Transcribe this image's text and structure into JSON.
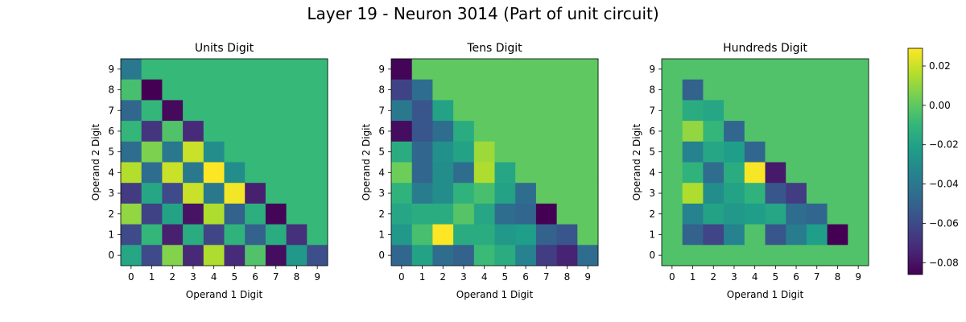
{
  "title": "Layer 19 - Neuron 3014 (Part of unit circuit)",
  "colormap": [
    "#440154",
    "#482878",
    "#3e4989",
    "#31688e",
    "#26828e",
    "#1f9e89",
    "#35b779",
    "#6ece58",
    "#b5de2b",
    "#fde725"
  ],
  "colorbar": {
    "min": -0.086,
    "max": 0.029,
    "ticks": [
      0.02,
      0.0,
      -0.02,
      -0.04,
      -0.06,
      -0.08
    ],
    "tick_labels": [
      "0.02",
      "0.00",
      "−0.02",
      "−0.04",
      "−0.06",
      "−0.08"
    ]
  },
  "chart_data": [
    {
      "type": "heatmap",
      "title": "Units Digit",
      "xlabel": "Operand 1 Digit",
      "ylabel": "Operand 2 Digit",
      "x": [
        0,
        1,
        2,
        3,
        4,
        5,
        6,
        7,
        8,
        9
      ],
      "y": [
        9,
        8,
        7,
        6,
        5,
        4,
        3,
        2,
        1,
        0
      ],
      "values": [
        [
          -0.04,
          -0.009,
          -0.009,
          -0.009,
          -0.009,
          -0.009,
          -0.009,
          -0.009,
          -0.009,
          -0.009
        ],
        [
          -0.005,
          -0.086,
          -0.009,
          -0.009,
          -0.009,
          -0.009,
          -0.009,
          -0.009,
          -0.009,
          -0.009
        ],
        [
          -0.048,
          -0.01,
          -0.083,
          -0.009,
          -0.009,
          -0.009,
          -0.009,
          -0.009,
          -0.009,
          -0.009
        ],
        [
          -0.01,
          -0.068,
          -0.003,
          -0.072,
          -0.009,
          -0.009,
          -0.009,
          -0.009,
          -0.009,
          -0.009
        ],
        [
          -0.045,
          0.006,
          -0.04,
          0.02,
          -0.03,
          -0.009,
          -0.009,
          -0.009,
          -0.009,
          -0.009
        ],
        [
          0.016,
          -0.045,
          0.02,
          -0.04,
          0.029,
          -0.03,
          -0.009,
          -0.009,
          -0.009,
          -0.009
        ],
        [
          -0.066,
          -0.018,
          -0.06,
          0.02,
          -0.04,
          0.027,
          -0.076,
          -0.009,
          -0.009,
          -0.009
        ],
        [
          0.01,
          -0.063,
          -0.02,
          -0.08,
          0.015,
          -0.05,
          -0.014,
          -0.085,
          -0.009,
          -0.009
        ],
        [
          -0.06,
          -0.01,
          -0.076,
          -0.015,
          -0.062,
          -0.012,
          -0.05,
          -0.015,
          -0.07,
          -0.009
        ],
        [
          -0.018,
          -0.06,
          0.007,
          -0.073,
          0.015,
          -0.072,
          -0.003,
          -0.082,
          -0.025,
          -0.058
        ]
      ]
    },
    {
      "type": "heatmap",
      "title": "Tens Digit",
      "xlabel": "Operand 1 Digit",
      "ylabel": "Operand 2 Digit",
      "x": [
        0,
        1,
        2,
        3,
        4,
        5,
        6,
        7,
        8,
        9
      ],
      "y": [
        9,
        8,
        7,
        6,
        5,
        4,
        3,
        2,
        1,
        0
      ],
      "values": [
        [
          -0.085,
          0.0,
          0.0,
          0.0,
          0.0,
          0.0,
          0.0,
          0.0,
          0.0,
          0.0
        ],
        [
          -0.063,
          -0.045,
          0.0,
          0.0,
          0.0,
          0.0,
          0.0,
          0.0,
          0.0,
          0.0
        ],
        [
          -0.04,
          -0.055,
          -0.02,
          0.0,
          0.0,
          0.0,
          0.0,
          0.0,
          0.0,
          0.0
        ],
        [
          -0.082,
          -0.055,
          -0.045,
          -0.015,
          0.0,
          0.0,
          0.0,
          0.0,
          0.0,
          0.0
        ],
        [
          -0.015,
          -0.048,
          -0.028,
          -0.02,
          0.012,
          0.0,
          0.0,
          0.0,
          0.0,
          0.0
        ],
        [
          0.003,
          -0.048,
          -0.03,
          -0.045,
          0.015,
          -0.018,
          0.0,
          0.0,
          0.0,
          0.0
        ],
        [
          -0.012,
          -0.038,
          -0.03,
          -0.012,
          -0.005,
          -0.02,
          -0.045,
          0.0,
          0.0,
          0.0
        ],
        [
          -0.018,
          -0.015,
          -0.015,
          -0.002,
          -0.018,
          -0.045,
          -0.048,
          -0.086,
          0.0,
          0.0
        ],
        [
          -0.025,
          -0.005,
          0.029,
          -0.015,
          -0.015,
          -0.025,
          -0.022,
          -0.05,
          -0.055,
          0.0
        ],
        [
          -0.048,
          -0.02,
          -0.045,
          -0.05,
          -0.008,
          -0.015,
          -0.035,
          -0.065,
          -0.075,
          -0.045
        ]
      ]
    },
    {
      "type": "heatmap",
      "title": "Hundreds Digit",
      "xlabel": "Operand 1 Digit",
      "ylabel": "Operand 2 Digit",
      "x": [
        0,
        1,
        2,
        3,
        4,
        5,
        6,
        7,
        8,
        9
      ],
      "y": [
        9,
        8,
        7,
        6,
        5,
        4,
        3,
        2,
        1,
        0
      ],
      "values": [
        [
          -0.003,
          -0.003,
          -0.003,
          -0.003,
          -0.003,
          -0.003,
          -0.003,
          -0.003,
          -0.003,
          -0.003
        ],
        [
          -0.003,
          -0.05,
          -0.003,
          -0.003,
          -0.003,
          -0.003,
          -0.003,
          -0.003,
          -0.003,
          -0.003
        ],
        [
          -0.003,
          -0.015,
          -0.018,
          -0.003,
          -0.003,
          -0.003,
          -0.003,
          -0.003,
          -0.003,
          -0.003
        ],
        [
          -0.003,
          0.01,
          -0.01,
          -0.048,
          -0.003,
          -0.003,
          -0.003,
          -0.003,
          -0.003,
          -0.003
        ],
        [
          -0.003,
          -0.035,
          -0.018,
          -0.022,
          -0.048,
          -0.003,
          -0.003,
          -0.003,
          -0.003,
          -0.003
        ],
        [
          -0.003,
          -0.012,
          -0.045,
          -0.015,
          0.028,
          -0.078,
          -0.003,
          -0.003,
          -0.003,
          -0.003
        ],
        [
          -0.003,
          0.015,
          -0.03,
          -0.02,
          -0.012,
          -0.055,
          -0.065,
          -0.003,
          -0.003,
          -0.003
        ],
        [
          -0.003,
          -0.035,
          -0.02,
          -0.025,
          -0.022,
          -0.018,
          -0.045,
          -0.048,
          -0.003,
          -0.003
        ],
        [
          -0.003,
          -0.05,
          -0.062,
          -0.035,
          -0.003,
          -0.055,
          -0.038,
          -0.022,
          -0.086,
          -0.003
        ],
        [
          -0.003,
          -0.003,
          -0.003,
          -0.003,
          -0.003,
          -0.003,
          -0.003,
          -0.003,
          -0.003,
          -0.003
        ]
      ]
    }
  ]
}
